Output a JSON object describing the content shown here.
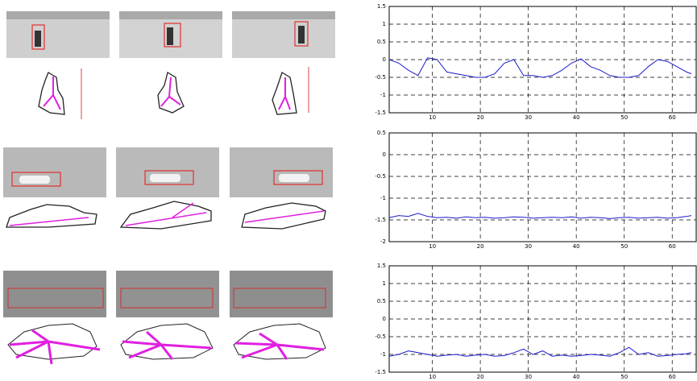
{
  "chart_data": [
    {
      "type": "line",
      "x": [
        1,
        3,
        5,
        7,
        9,
        11,
        13,
        15,
        17,
        19,
        21,
        23,
        25,
        27,
        29,
        31,
        33,
        35,
        37,
        39,
        41,
        43,
        45,
        47,
        49,
        51,
        53,
        55,
        57,
        59,
        61,
        63,
        64
      ],
      "series": [
        {
          "color": "#1a1acc",
          "values": [
            0,
            -0.1,
            -0.3,
            -0.45,
            0.05,
            0,
            -0.35,
            -0.4,
            -0.45,
            -0.5,
            -0.5,
            -0.4,
            -0.1,
            0,
            -0.45,
            -0.45,
            -0.5,
            -0.45,
            -0.3,
            -0.1,
            0.02,
            -0.2,
            -0.3,
            -0.45,
            -0.5,
            -0.5,
            -0.45,
            -0.2,
            0,
            -0.05,
            -0.2,
            -0.35,
            -0.4
          ]
        }
      ],
      "xlim": [
        1,
        65
      ],
      "xticks": [
        10,
        20,
        30,
        40,
        50,
        60
      ],
      "ylim": [
        -1.5,
        1.5
      ],
      "yticks": [
        -1.5,
        -1,
        -0.5,
        0,
        0.5,
        1,
        1.5
      ],
      "grid": true
    },
    {
      "type": "line",
      "x": [
        1,
        3,
        5,
        7,
        9,
        11,
        13,
        15,
        17,
        19,
        21,
        23,
        25,
        27,
        29,
        31,
        33,
        35,
        37,
        39,
        41,
        43,
        45,
        47,
        49,
        51,
        53,
        55,
        57,
        59,
        61,
        63,
        64
      ],
      "series": [
        {
          "color": "#1a1acc",
          "values": [
            -1.45,
            -1.4,
            -1.42,
            -1.35,
            -1.42,
            -1.45,
            -1.44,
            -1.46,
            -1.43,
            -1.45,
            -1.44,
            -1.46,
            -1.45,
            -1.43,
            -1.44,
            -1.46,
            -1.45,
            -1.44,
            -1.45,
            -1.43,
            -1.46,
            -1.44,
            -1.45,
            -1.47,
            -1.45,
            -1.44,
            -1.46,
            -1.45,
            -1.44,
            -1.46,
            -1.45,
            -1.42,
            -1.4
          ]
        }
      ],
      "xlim": [
        1,
        65
      ],
      "xticks": [
        10,
        20,
        30,
        40,
        50,
        60
      ],
      "ylim": [
        -2,
        0.5
      ],
      "yticks": [
        -2,
        -1.5,
        -1,
        -0.5,
        0,
        0.5
      ],
      "grid": true
    },
    {
      "type": "line",
      "x": [
        1,
        3,
        5,
        7,
        9,
        11,
        13,
        15,
        17,
        19,
        21,
        23,
        25,
        27,
        29,
        31,
        33,
        35,
        37,
        39,
        41,
        43,
        45,
        47,
        49,
        51,
        53,
        55,
        57,
        59,
        61,
        63,
        64
      ],
      "series": [
        {
          "color": "#1a1acc",
          "values": [
            -1.05,
            -1,
            -0.9,
            -0.95,
            -1,
            -1.05,
            -1.02,
            -1,
            -1.05,
            -1.02,
            -1,
            -1.05,
            -1.03,
            -0.95,
            -0.85,
            -1,
            -0.9,
            -1.05,
            -1.02,
            -1.05,
            -1.03,
            -1,
            -1.02,
            -1.05,
            -0.95,
            -0.8,
            -1,
            -0.95,
            -1.05,
            -1.03,
            -1,
            -0.98,
            -0.95
          ]
        }
      ],
      "xlim": [
        1,
        65
      ],
      "xticks": [
        10,
        20,
        30,
        40,
        50,
        60
      ],
      "ylim": [
        -1.5,
        1.5
      ],
      "yticks": [
        -1.5,
        -1,
        -0.5,
        0,
        0.5,
        1,
        1.5
      ],
      "grid": true
    }
  ]
}
